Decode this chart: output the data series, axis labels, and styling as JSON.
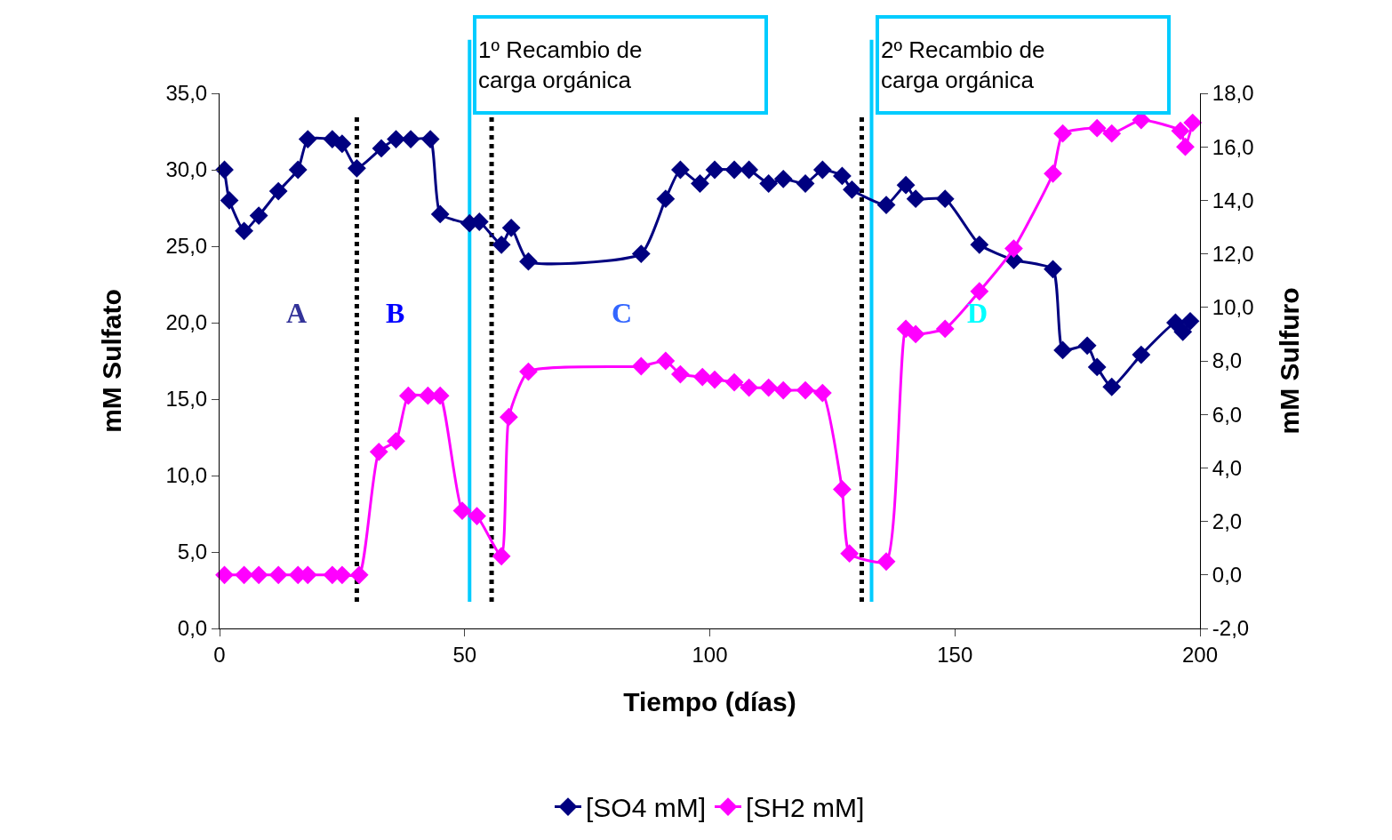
{
  "chart_data": {
    "type": "line",
    "xlabel": "Tiempo (días)",
    "ylabel": "mM Sulfato",
    "y2label": "mM Sulfuro",
    "xlim": [
      0,
      200
    ],
    "xticks": [
      0,
      50,
      100,
      150,
      200
    ],
    "ylim": [
      0,
      35
    ],
    "yticks": [
      {
        "value": 0,
        "label": "0,0"
      },
      {
        "value": 5,
        "label": "5,0"
      },
      {
        "value": 10,
        "label": "10,0"
      },
      {
        "value": 15,
        "label": "15,0"
      },
      {
        "value": 20,
        "label": "20,0"
      },
      {
        "value": 25,
        "label": "25,0"
      },
      {
        "value": 30,
        "label": "30,0"
      },
      {
        "value": 35,
        "label": "35,0"
      }
    ],
    "y2lim": [
      -2,
      18
    ],
    "y2ticks": [
      {
        "value": -2,
        "label": "-2,0"
      },
      {
        "value": 0,
        "label": "0,0"
      },
      {
        "value": 2,
        "label": "2,0"
      },
      {
        "value": 4,
        "label": "4,0"
      },
      {
        "value": 6,
        "label": "6,0"
      },
      {
        "value": 8,
        "label": "8,0"
      },
      {
        "value": 10,
        "label": "10,0"
      },
      {
        "value": 12,
        "label": "12,0"
      },
      {
        "value": 14,
        "label": "14,0"
      },
      {
        "value": 16,
        "label": "16,0"
      },
      {
        "value": 18,
        "label": "18,0"
      }
    ],
    "grid": false,
    "legend": "bottom",
    "marker": "diamond",
    "series": [
      {
        "name": "[SO4 mM]",
        "color": "#000080",
        "x": [
          1,
          2,
          5,
          8,
          12,
          16,
          18,
          23,
          25,
          28,
          33,
          36,
          39,
          43,
          45,
          51,
          53,
          57.5,
          59.5,
          63,
          86,
          91,
          94,
          98,
          101,
          105,
          108,
          112,
          115,
          119.5,
          123,
          127,
          129,
          136,
          140,
          142,
          148,
          155,
          162,
          170,
          172,
          177,
          179,
          182,
          188,
          195,
          196.5,
          198
        ],
        "values": [
          30.0,
          28.0,
          26.0,
          27.0,
          28.6,
          30.0,
          32.0,
          32.0,
          31.7,
          30.1,
          31.4,
          32.0,
          32.0,
          32.0,
          27.1,
          26.5,
          26.6,
          25.1,
          26.2,
          24.0,
          24.5,
          28.1,
          30.0,
          29.1,
          30.0,
          30.0,
          30.0,
          29.1,
          29.4,
          29.1,
          30.0,
          29.6,
          28.7,
          27.7,
          29.0,
          28.1,
          28.1,
          25.1,
          24.1,
          23.5,
          18.2,
          18.5,
          17.1,
          15.8,
          17.9,
          20.0,
          19.4,
          20.1
        ]
      },
      {
        "name": "[SH2 mM]",
        "color": "#ff00ff",
        "axis": "y2",
        "x": [
          1,
          5,
          8,
          12,
          16,
          18,
          23,
          25,
          28.5,
          32.5,
          36,
          38.5,
          42.5,
          45,
          49.5,
          52.5,
          57.5,
          59,
          63,
          86,
          91,
          94,
          98.5,
          101,
          105,
          108,
          112,
          115,
          119.5,
          123,
          127,
          128.5,
          136,
          140,
          142,
          148,
          155,
          162,
          170,
          172,
          179,
          182,
          188,
          196,
          197,
          198.5
        ],
        "values": [
          0.0,
          0.0,
          0.0,
          0.0,
          0.0,
          0.0,
          0.0,
          0.0,
          0.0,
          4.6,
          5.0,
          6.7,
          6.7,
          6.7,
          2.4,
          2.2,
          0.7,
          5.9,
          7.6,
          7.8,
          8.0,
          7.5,
          7.4,
          7.3,
          7.2,
          7.0,
          7.0,
          6.9,
          6.9,
          6.8,
          3.2,
          0.8,
          0.5,
          9.2,
          9.0,
          9.2,
          10.6,
          12.2,
          15.0,
          16.5,
          16.7,
          16.5,
          17.0,
          16.6,
          16.0,
          16.9
        ]
      }
    ],
    "ref_lines": [
      {
        "axis": "x",
        "value": 28,
        "color": "#000000",
        "line_style": "dotted"
      },
      {
        "axis": "x",
        "value": 55.5,
        "color": "#000000",
        "line_style": "dotted"
      },
      {
        "axis": "x",
        "value": 131,
        "color": "#000000",
        "line_style": "dotted"
      },
      {
        "axis": "x",
        "value": 51,
        "color": "#00ccff",
        "line_style": "solid",
        "label": "1º Recambio de carga orgánica"
      },
      {
        "axis": "x",
        "value": 133,
        "color": "#00ccff",
        "line_style": "solid",
        "label": "2º Recambio de carga orgánica"
      }
    ],
    "annotations": [
      "A",
      "B",
      "C",
      "D"
    ]
  }
}
